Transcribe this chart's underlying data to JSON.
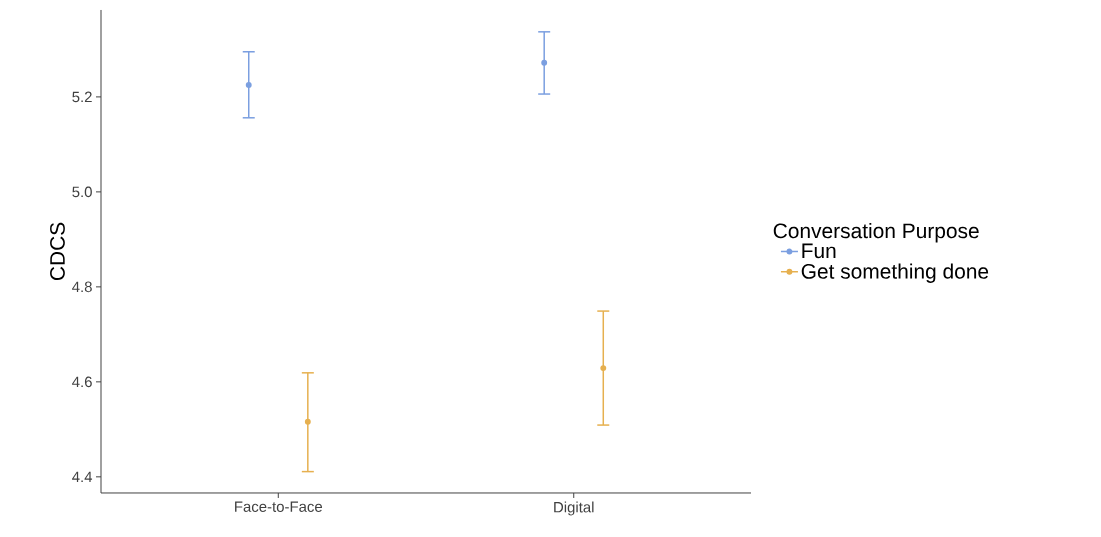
{
  "chart_data": {
    "type": "scatter",
    "ylabel": "CDCS",
    "legend_title": "Conversation Purpose",
    "categories": [
      "Face-to-Face",
      "Digital"
    ],
    "series": [
      {
        "name": "Fun",
        "color": "#7b9fe0",
        "values": [
          5.225,
          5.272
        ],
        "errors": [
          [
            5.156,
            5.295
          ],
          [
            5.206,
            5.337
          ]
        ]
      },
      {
        "name": "Get something done",
        "color": "#e6b04f",
        "values": [
          4.516,
          4.629
        ],
        "errors": [
          [
            4.411,
            4.619
          ],
          [
            4.509,
            4.749
          ]
        ]
      }
    ],
    "ylim": [
      4.366,
      5.383
    ],
    "yticks": [
      4.4,
      4.6,
      4.8,
      {
        "value": 5,
        "label": "5.0"
      },
      5.2
    ],
    "grid": false,
    "legend": "right",
    "marker": "circle"
  }
}
